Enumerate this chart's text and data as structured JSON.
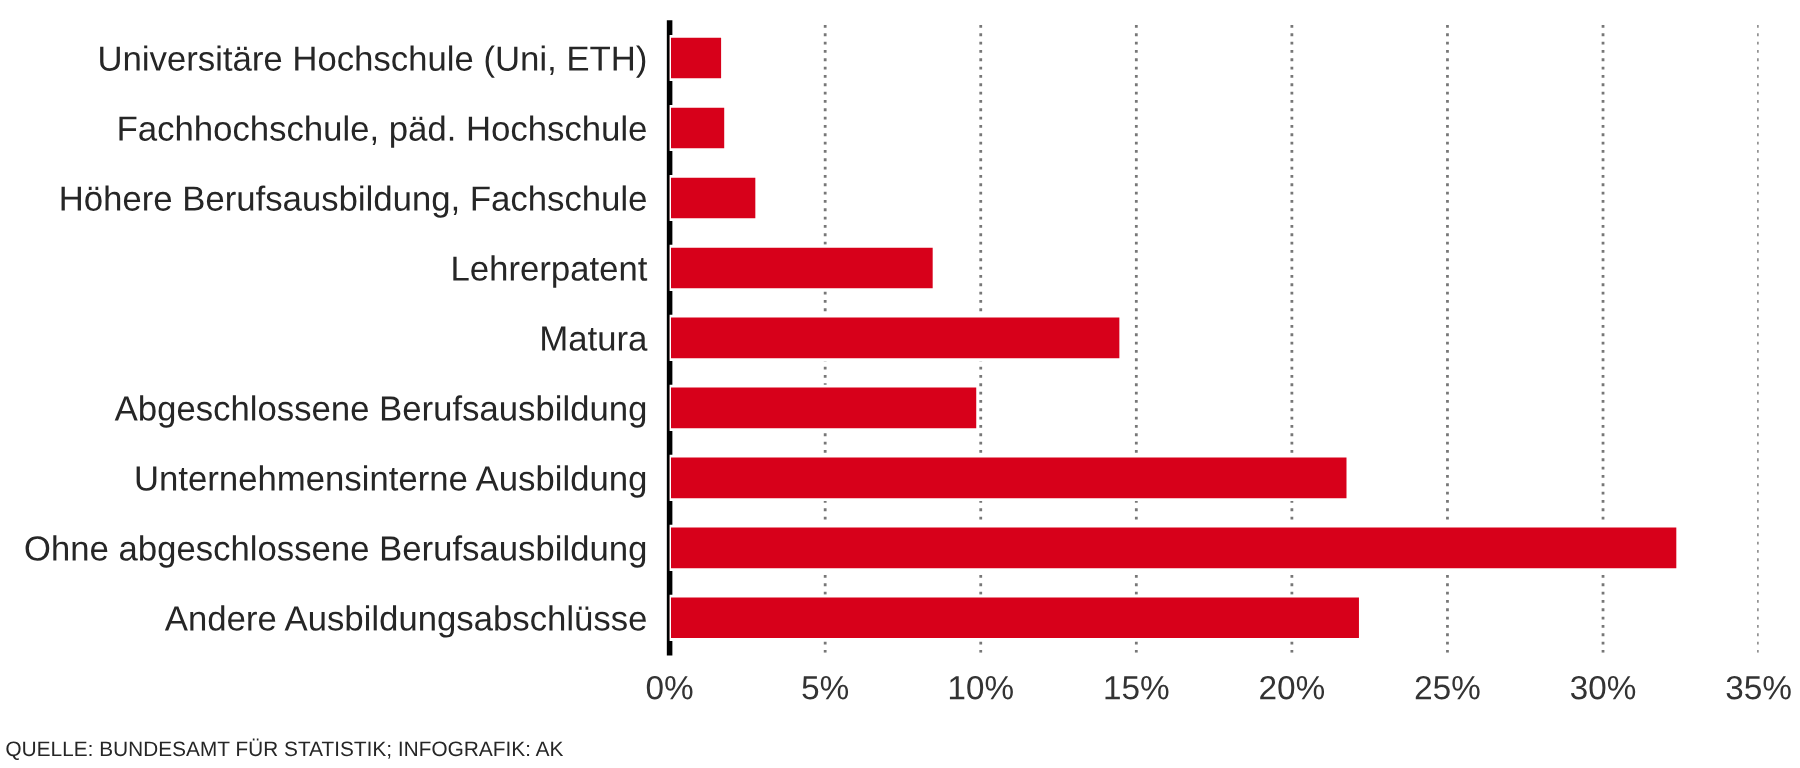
{
  "chart_data": {
    "type": "bar",
    "orientation": "horizontal",
    "categories": [
      "Universitäre Hochschule (Uni, ETH)",
      "Fachhochschule, päd. Hochschule",
      "Höhere Berufsausbildung, Fachschule",
      "Lehrerpatent",
      "Matura",
      "Abgeschlossene Berufsausbildung",
      "Unternehmensinterne Ausbildung",
      "Ohne abgeschlossene Berufsausbildung",
      "Andere Ausbildungsabschlüsse"
    ],
    "values": [
      1.7,
      1.8,
      2.8,
      8.5,
      14.5,
      9.9,
      21.8,
      32.4,
      22.2
    ],
    "color": "#d7001a",
    "xlim": [
      0,
      35
    ],
    "xticks": [
      {
        "value": 0,
        "label": "0%"
      },
      {
        "value": 5,
        "label": "5%"
      },
      {
        "value": 10,
        "label": "10%"
      },
      {
        "value": 15,
        "label": "15%"
      },
      {
        "value": 20,
        "label": "20%"
      },
      {
        "value": 25,
        "label": "25%"
      },
      {
        "value": 30,
        "label": "30%"
      },
      {
        "value": 35,
        "label": "35%"
      }
    ],
    "grid": "x",
    "annotations": [
      "QUELLE: BUNDESAMT FÜR STATISTIK; INFOGRAFIK: AK"
    ]
  }
}
